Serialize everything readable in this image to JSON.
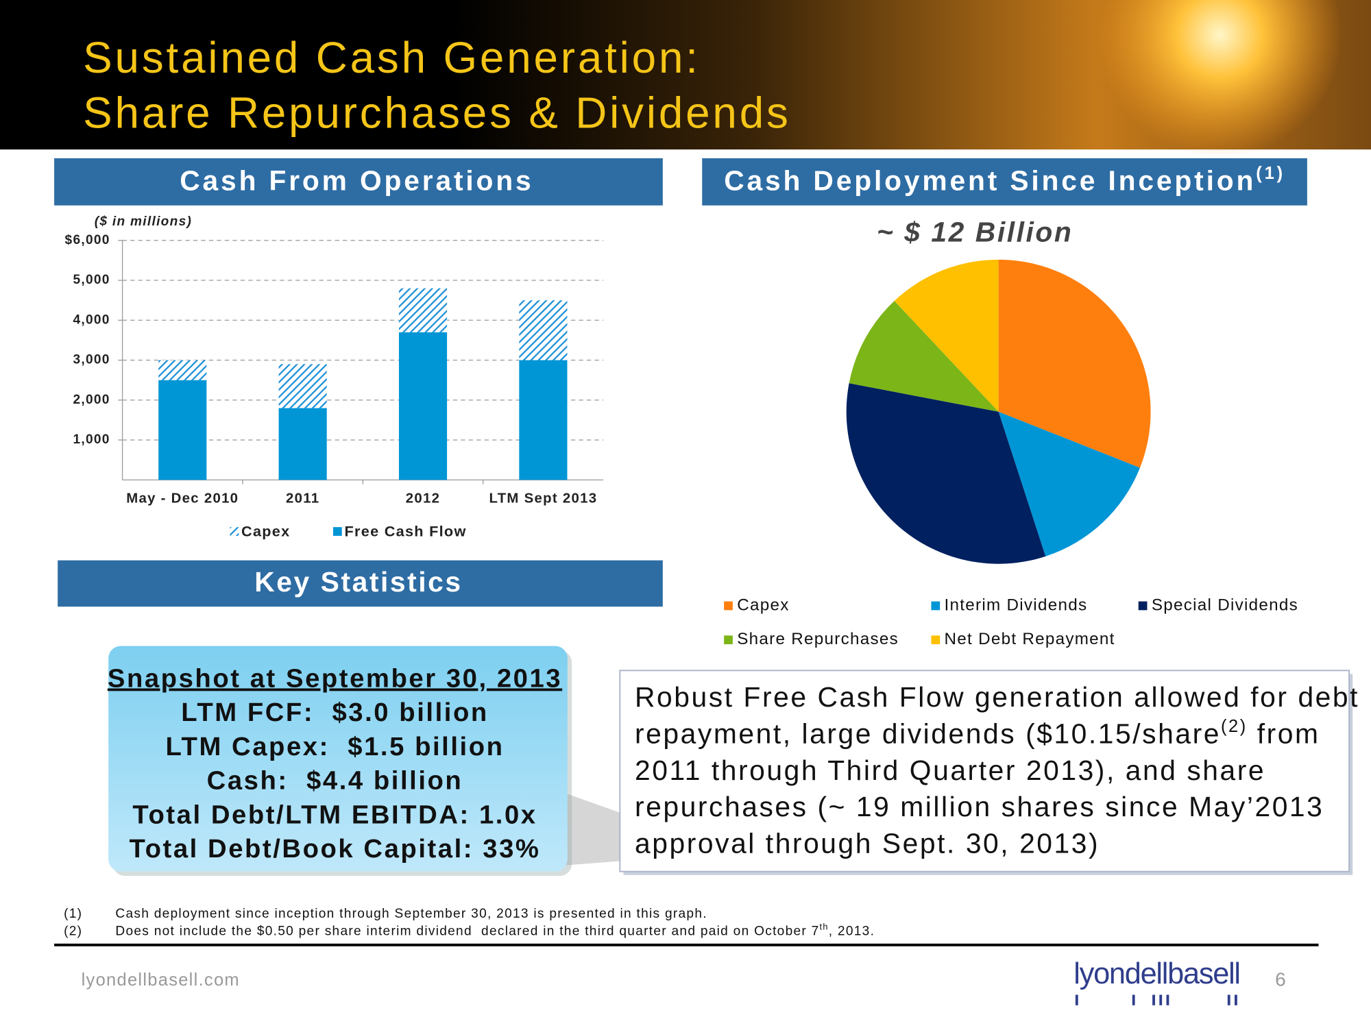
{
  "header": {
    "title_lines": [
      "Sustained Cash Generation:",
      "Share Repurchases & Dividends"
    ]
  },
  "chart_data": [
    {
      "type": "bar",
      "title": "Cash From Operations",
      "unit_note": "($ in millions)",
      "stacked": true,
      "grid": true,
      "categories": [
        "May - Dec 2010",
        "2011",
        "2012",
        "LTM Sept 2013"
      ],
      "series": [
        {
          "name": "Capex",
          "color": "#1a8fd8",
          "pattern": "hatch",
          "values": [
            500,
            1100,
            1100,
            1500
          ]
        },
        {
          "name": "Free Cash Flow",
          "color": "#0096d6",
          "values": [
            2500,
            1800,
            3700,
            3000
          ]
        }
      ],
      "ylim": [
        0,
        6000
      ],
      "yticks": [
        {
          "value": 1000,
          "label": "1,000"
        },
        {
          "value": 2000,
          "label": "2,000"
        },
        {
          "value": 3000,
          "label": "3,000"
        },
        {
          "value": 4000,
          "label": "4,000"
        },
        {
          "value": 5000,
          "label": "5,000"
        },
        {
          "value": 6000,
          "label": "$6,000"
        }
      ]
    },
    {
      "type": "pie",
      "title": "Cash Deployment Since Inception",
      "title_sup": "(1)",
      "subtitle": "~ $ 12 Billion",
      "categories": [
        "Capex",
        "Interim Dividends",
        "Special Dividends",
        "Share Repurchases",
        "Net Debt Repayment"
      ],
      "values": [
        31,
        14,
        33,
        10,
        12
      ],
      "colors": [
        "#ff7f0e",
        "#0096d6",
        "#002060",
        "#7cb518",
        "#ffc000"
      ]
    }
  ],
  "key_statistics": {
    "heading": "Key Statistics",
    "snapshot": "Snapshot at September 30, 2013",
    "lines": [
      "LTM FCF:  $3.0 billion",
      "LTM Capex:  $1.5 billion",
      "Cash:  $4.4 billion",
      "Total Debt/LTM EBITDA: 1.0x",
      "Total Debt/Book Capital: 33%"
    ]
  },
  "summary": {
    "lines": [
      "Robust Free Cash Flow generation allowed for debt",
      {
        "text": "repayment, large dividends ($10.15/share",
        "sup": "(2)",
        "after": " from"
      },
      "2011 through Third Quarter 2013), and share",
      "repurchases (~ 19 million shares since May’2013",
      "approval through Sept. 30, 2013)"
    ]
  },
  "footnotes": [
    {
      "marker": "(1)",
      "text": "Cash deployment since inception through September 30, 2013 is presented in this graph."
    },
    {
      "marker": "(2)",
      "text": "Does not include the $0.50 per share interim dividend  declared in the third quarter and paid on October 7",
      "sup": "th",
      "after": ", 2013."
    }
  ],
  "footer": {
    "site": "lyondellbasell.com",
    "logo": "lyondellbasell",
    "page": "6"
  }
}
